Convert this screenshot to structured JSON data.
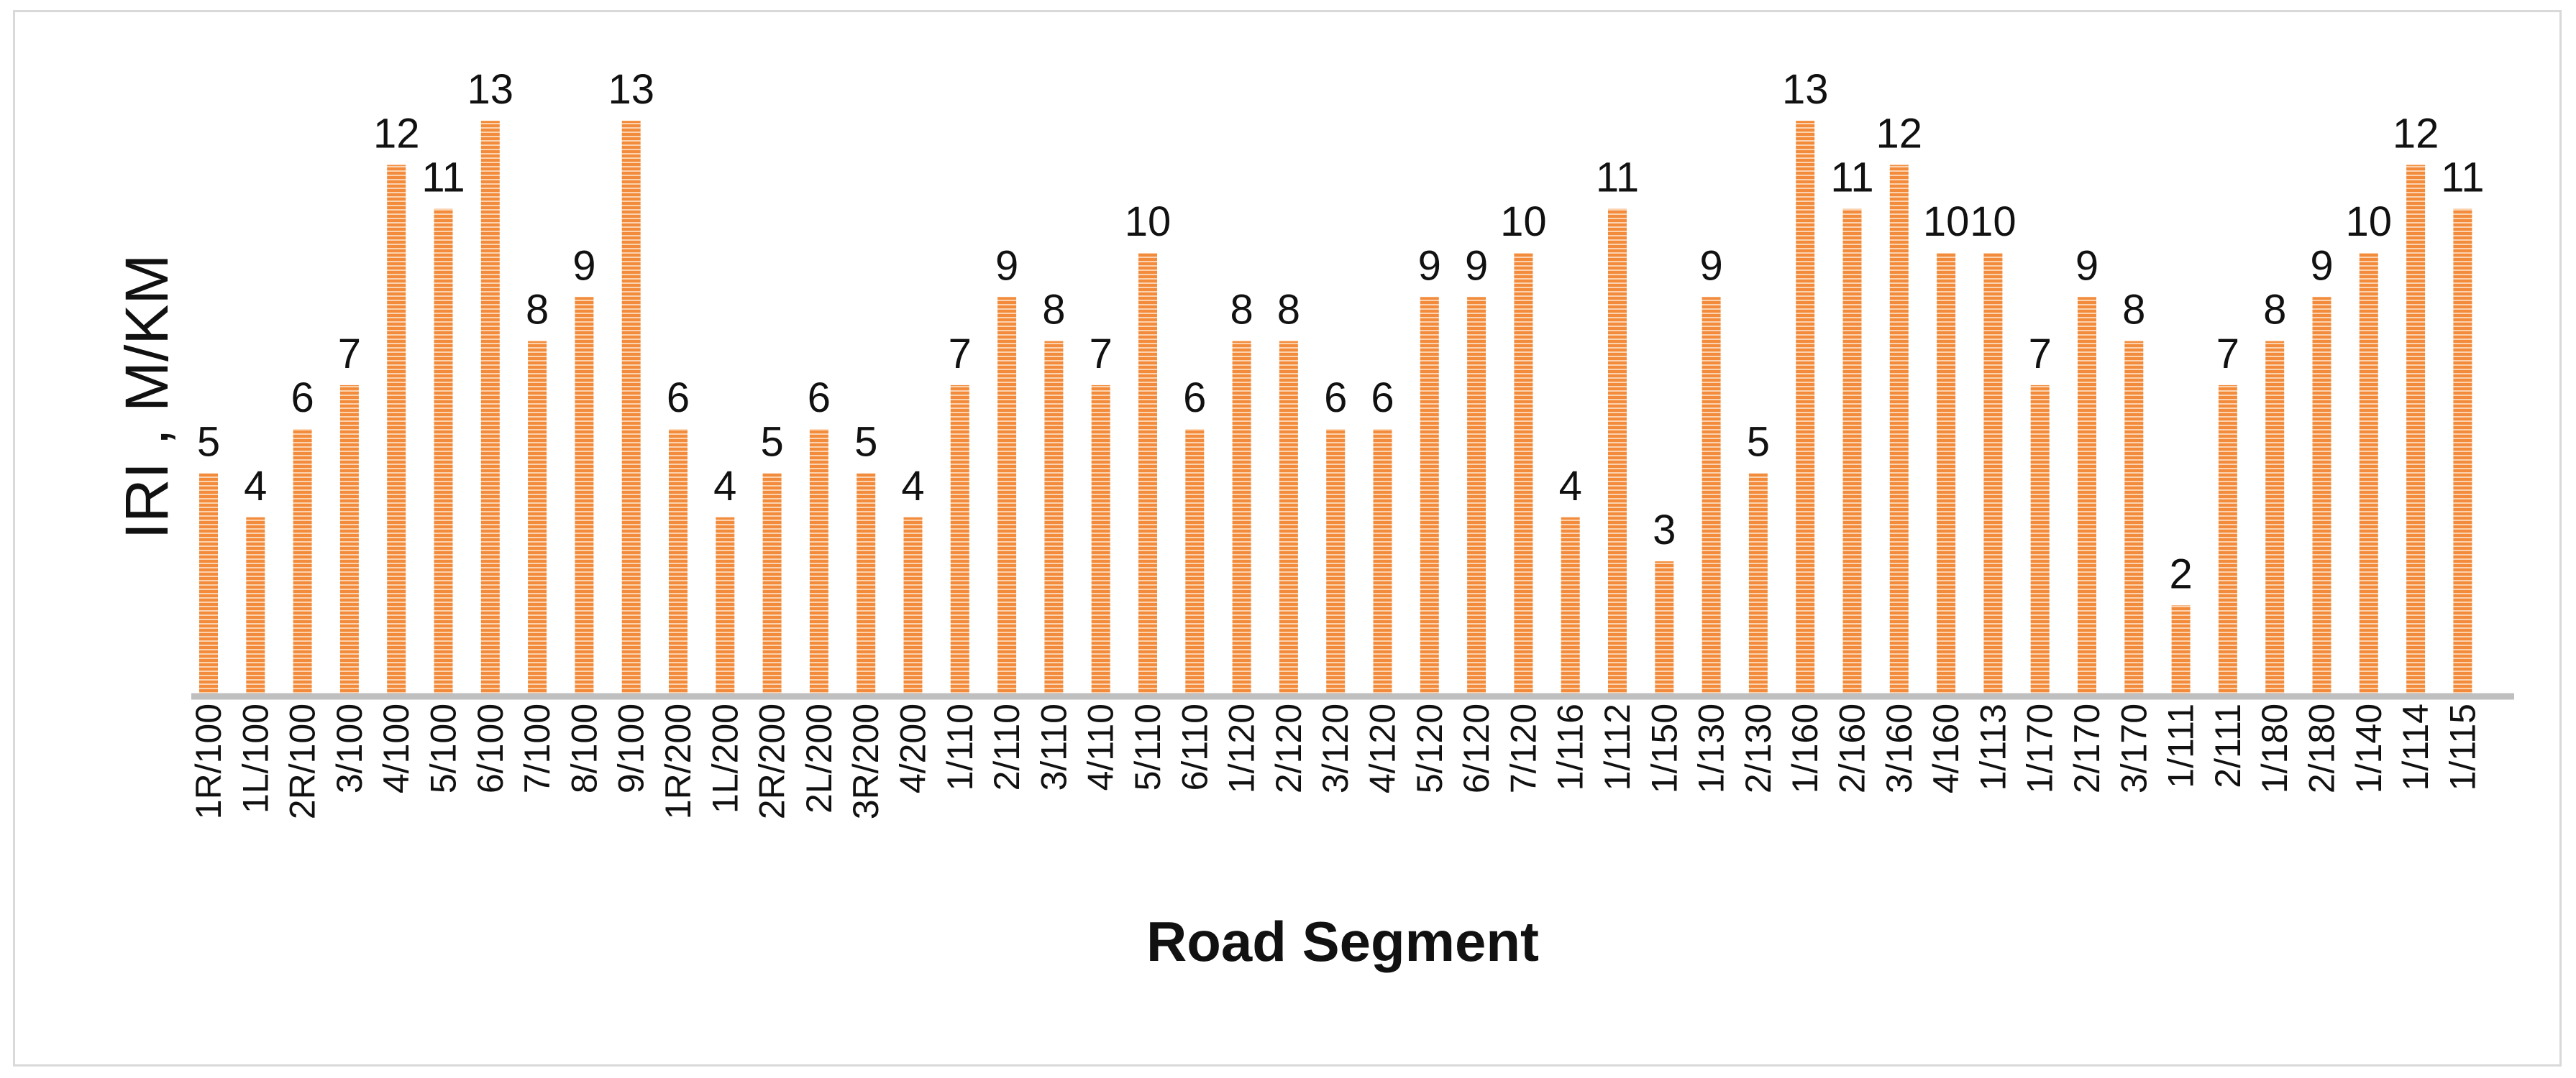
{
  "chart_data": {
    "type": "bar",
    "title": "",
    "xlabel": "Road Segment",
    "ylabel": "IRI , M/KM",
    "ylim": [
      0,
      14
    ],
    "grid": false,
    "legend": "none",
    "categories": [
      "1R/100",
      "1L/100",
      "2R/100",
      "3/100",
      "4/100",
      "5/100",
      "6/100",
      "7/100",
      "8/100",
      "9/100",
      "1R/200",
      "1L/200",
      "2R/200",
      "2L/200",
      "3R/200",
      "4/200",
      "1/110",
      "2/110",
      "3/110",
      "4/110",
      "5/110",
      "6/110",
      "1/120",
      "2/120",
      "3/120",
      "4/120",
      "5/120",
      "6/120",
      "7/120",
      "1/116",
      "1/112",
      "1/150",
      "1/130",
      "2/130",
      "1/160",
      "2/160",
      "3/160",
      "4/160",
      "1/113",
      "1/170",
      "2/170",
      "3/170",
      "1/111",
      "2/111",
      "1/180",
      "2/180",
      "1/140",
      "1/114",
      "1/115"
    ],
    "values": [
      5,
      4,
      6,
      7,
      12,
      11,
      13,
      8,
      9,
      13,
      6,
      4,
      5,
      6,
      5,
      4,
      7,
      9,
      8,
      7,
      10,
      6,
      8,
      8,
      6,
      6,
      9,
      9,
      10,
      4,
      11,
      3,
      9,
      5,
      13,
      11,
      12,
      10,
      10,
      7,
      9,
      8,
      2,
      7,
      8,
      9,
      10,
      12,
      11
    ],
    "colors": {
      "bar": "#f28c3c",
      "bar_stripe": "#fbd3b0",
      "axis": "#bfbfbf"
    }
  }
}
